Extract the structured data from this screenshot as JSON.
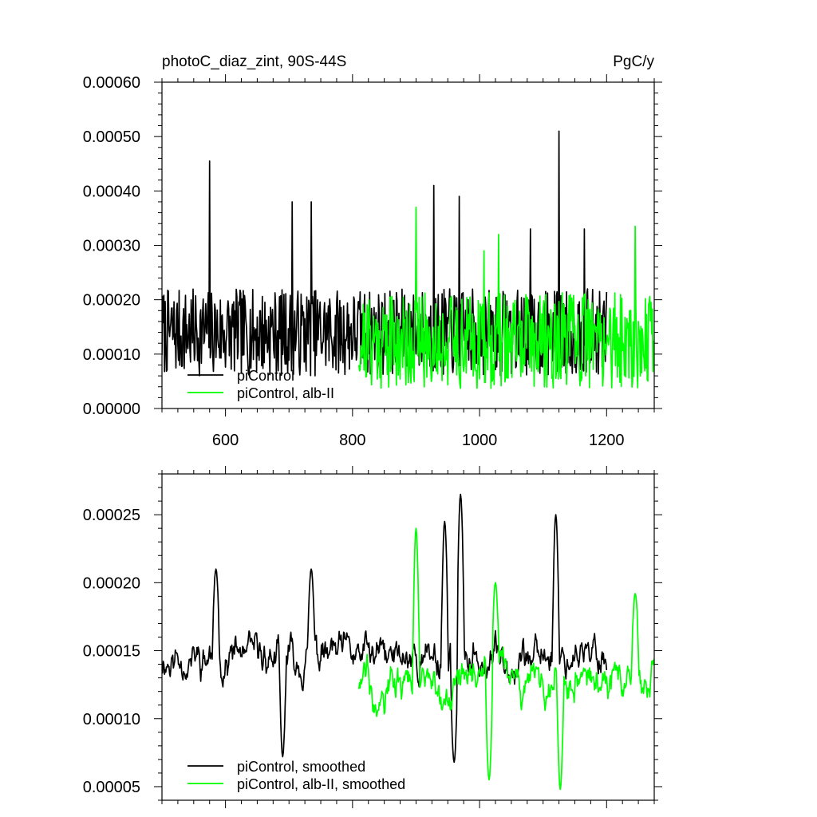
{
  "chart_data": [
    {
      "type": "line",
      "title": "photoC_diaz_zint, 90S-44S",
      "units": "PgC/y",
      "xlim": [
        500,
        1275
      ],
      "ylim": [
        0.0,
        0.0006
      ],
      "x_ticks": [
        600,
        800,
        1000,
        1200
      ],
      "x_tick_labels": [
        "600",
        "800",
        "1000",
        "1200"
      ],
      "y_ticks": [
        0.0,
        0.0001,
        0.0002,
        0.0003,
        0.0004,
        0.0005,
        0.0006
      ],
      "y_tick_labels": [
        "0.00000",
        "0.00010",
        "0.00020",
        "0.00030",
        "0.00040",
        "0.00050",
        "0.00060"
      ],
      "legend_position": "bottom-left",
      "series": [
        {
          "name": "piControl",
          "color": "#000000",
          "x_range": [
            500,
            1200
          ],
          "mean": 0.00014,
          "spread": 5e-05,
          "seed": 7,
          "peaks": [
            [
              575,
              0.000455
            ],
            [
              705,
              0.00038
            ],
            [
              735,
              0.00038
            ],
            [
              928,
              0.00041
            ],
            [
              968,
              0.00039
            ],
            [
              1125,
              0.00051
            ],
            [
              1165,
              0.00033
            ],
            [
              1080,
              0.00033
            ]
          ]
        },
        {
          "name": "piControl, alb-II",
          "color": "#00ff00",
          "x_range": [
            810,
            1275
          ],
          "mean": 0.000125,
          "spread": 5.5e-05,
          "seed": 21,
          "peaks": [
            [
              900,
              0.00037
            ],
            [
              1007,
              0.00029
            ],
            [
              1030,
              0.00032
            ],
            [
              1245,
              0.000335
            ]
          ]
        }
      ]
    },
    {
      "type": "line",
      "xlim": [
        500,
        1275
      ],
      "ylim": [
        4e-05,
        0.00028
      ],
      "x_ticks": [
        600,
        800,
        1000,
        1200
      ],
      "y_ticks": [
        5e-05,
        0.0001,
        0.00015,
        0.0002,
        0.00025
      ],
      "y_tick_labels": [
        "0.00005",
        "0.00010",
        "0.00015",
        "0.00020",
        "0.00025"
      ],
      "legend_position": "bottom-left",
      "series": [
        {
          "name": "piControl, smoothed",
          "color": "#000000",
          "x_range": [
            500,
            1200
          ],
          "mean": 0.000145,
          "spread": 2.2e-05,
          "seed": 11,
          "peaks": [
            [
              970,
              0.000265
            ],
            [
              1120,
              0.00025
            ],
            [
              945,
              0.000245
            ],
            [
              585,
              0.00021
            ],
            [
              735,
              0.00021
            ],
            [
              960,
              6.8e-05
            ],
            [
              690,
              7.2e-05
            ]
          ]
        },
        {
          "name": "piControl, alb-II, smoothed",
          "color": "#00ff00",
          "x_range": [
            810,
            1275
          ],
          "mean": 0.000128,
          "spread": 2.4e-05,
          "seed": 33,
          "peaks": [
            [
              900,
              0.00024
            ],
            [
              1025,
              0.0002
            ],
            [
              1245,
              0.000192
            ],
            [
              1127,
              4.8e-05
            ],
            [
              1015,
              5.5e-05
            ]
          ]
        }
      ]
    }
  ]
}
